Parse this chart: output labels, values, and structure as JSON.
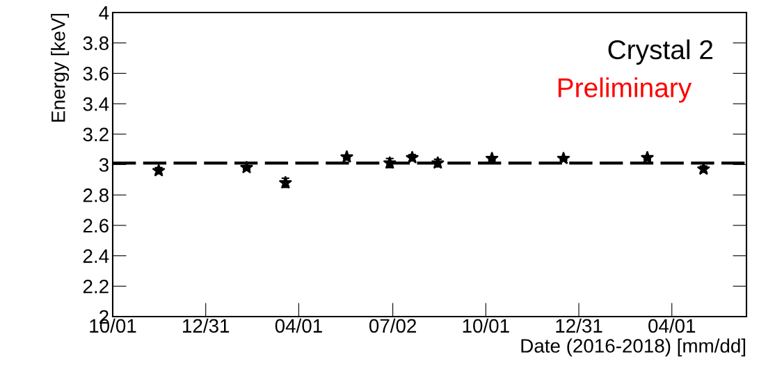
{
  "chart_data": {
    "type": "scatter",
    "xlabel": "Date (2016-2018) [mm/dd]",
    "ylabel": "Energy [keV]",
    "annotations": [
      "Crystal 2",
      "Preliminary"
    ],
    "x": [
      "2016-11-15",
      "2017-02-09",
      "2017-03-19",
      "2017-05-18",
      "2017-06-29",
      "2017-07-21",
      "2017-08-15",
      "2017-10-07",
      "2017-12-16",
      "2018-03-08",
      "2018-05-02"
    ],
    "values": [
      2.96,
      2.98,
      2.88,
      3.05,
      3.01,
      3.045,
      3.01,
      3.04,
      3.04,
      3.045,
      2.97
    ],
    "errors": [
      0.02,
      0.01,
      0.03,
      0.01,
      0.03,
      0.02,
      0.025,
      0.01,
      0.01,
      0.01,
      0.02
    ],
    "color": "#000000",
    "marker": "star",
    "ref_lines": [
      {
        "axis": "y",
        "value": 3.01,
        "color": "#000000",
        "line_style": "dashed"
      }
    ],
    "xlim": [
      "2016-10-01",
      "2018-06-13"
    ],
    "xticks": [
      {
        "value": "2016-10-01",
        "label": "10/01"
      },
      {
        "value": "2016-12-31",
        "label": "12/31"
      },
      {
        "value": "2017-04-01",
        "label": "04/01"
      },
      {
        "value": "2017-07-02",
        "label": "07/02"
      },
      {
        "value": "2017-10-01",
        "label": "10/01"
      },
      {
        "value": "2017-12-31",
        "label": "12/31"
      },
      {
        "value": "2018-04-01",
        "label": "04/01"
      }
    ],
    "ylim": [
      2,
      4
    ],
    "yticks": [
      2,
      2.2,
      2.4,
      2.6,
      2.8,
      3,
      3.2,
      3.4,
      3.6,
      3.8,
      4
    ],
    "grid": false,
    "legend": false
  }
}
